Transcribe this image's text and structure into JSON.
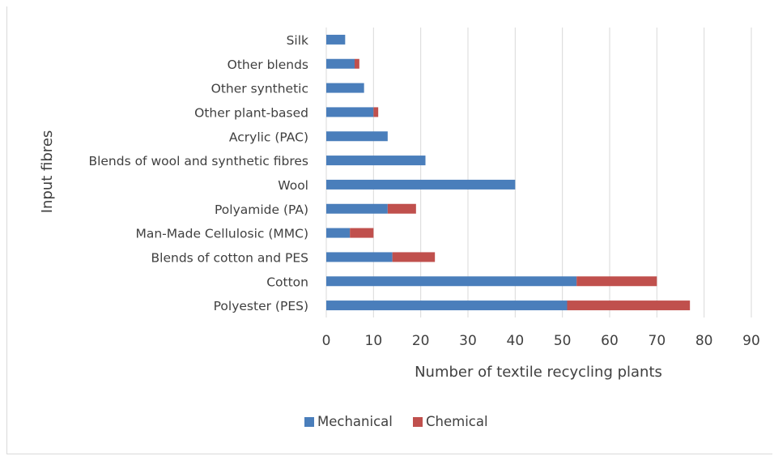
{
  "chart_data": {
    "type": "bar",
    "orientation": "horizontal",
    "stacked": true,
    "categories": [
      "Polyester (PES)",
      "Cotton",
      "Blends of cotton and PES",
      "Man-Made Cellulosic (MMC)",
      "Polyamide (PA)",
      "Wool",
      "Blends of wool and synthetic fibres",
      "Acrylic (PAC)",
      "Other plant-based",
      "Other synthetic",
      "Other blends",
      "Silk"
    ],
    "series": [
      {
        "name": "Mechanical",
        "color": "#4a7ebb",
        "values": [
          51,
          53,
          14,
          5,
          13,
          40,
          21,
          13,
          10,
          8,
          6,
          4
        ]
      },
      {
        "name": "Chemical",
        "color": "#c0504d",
        "values": [
          26,
          17,
          9,
          5,
          6,
          0,
          0,
          0,
          1,
          0,
          1,
          0
        ]
      }
    ],
    "xlabel": "Number of textile recycling plants",
    "ylabel": "Input fibres",
    "xlim": [
      0,
      90
    ],
    "xticks": [
      "0",
      "10",
      "20",
      "30",
      "40",
      "50",
      "60",
      "70",
      "80",
      "90"
    ],
    "grid": true,
    "legend_position": "bottom"
  }
}
